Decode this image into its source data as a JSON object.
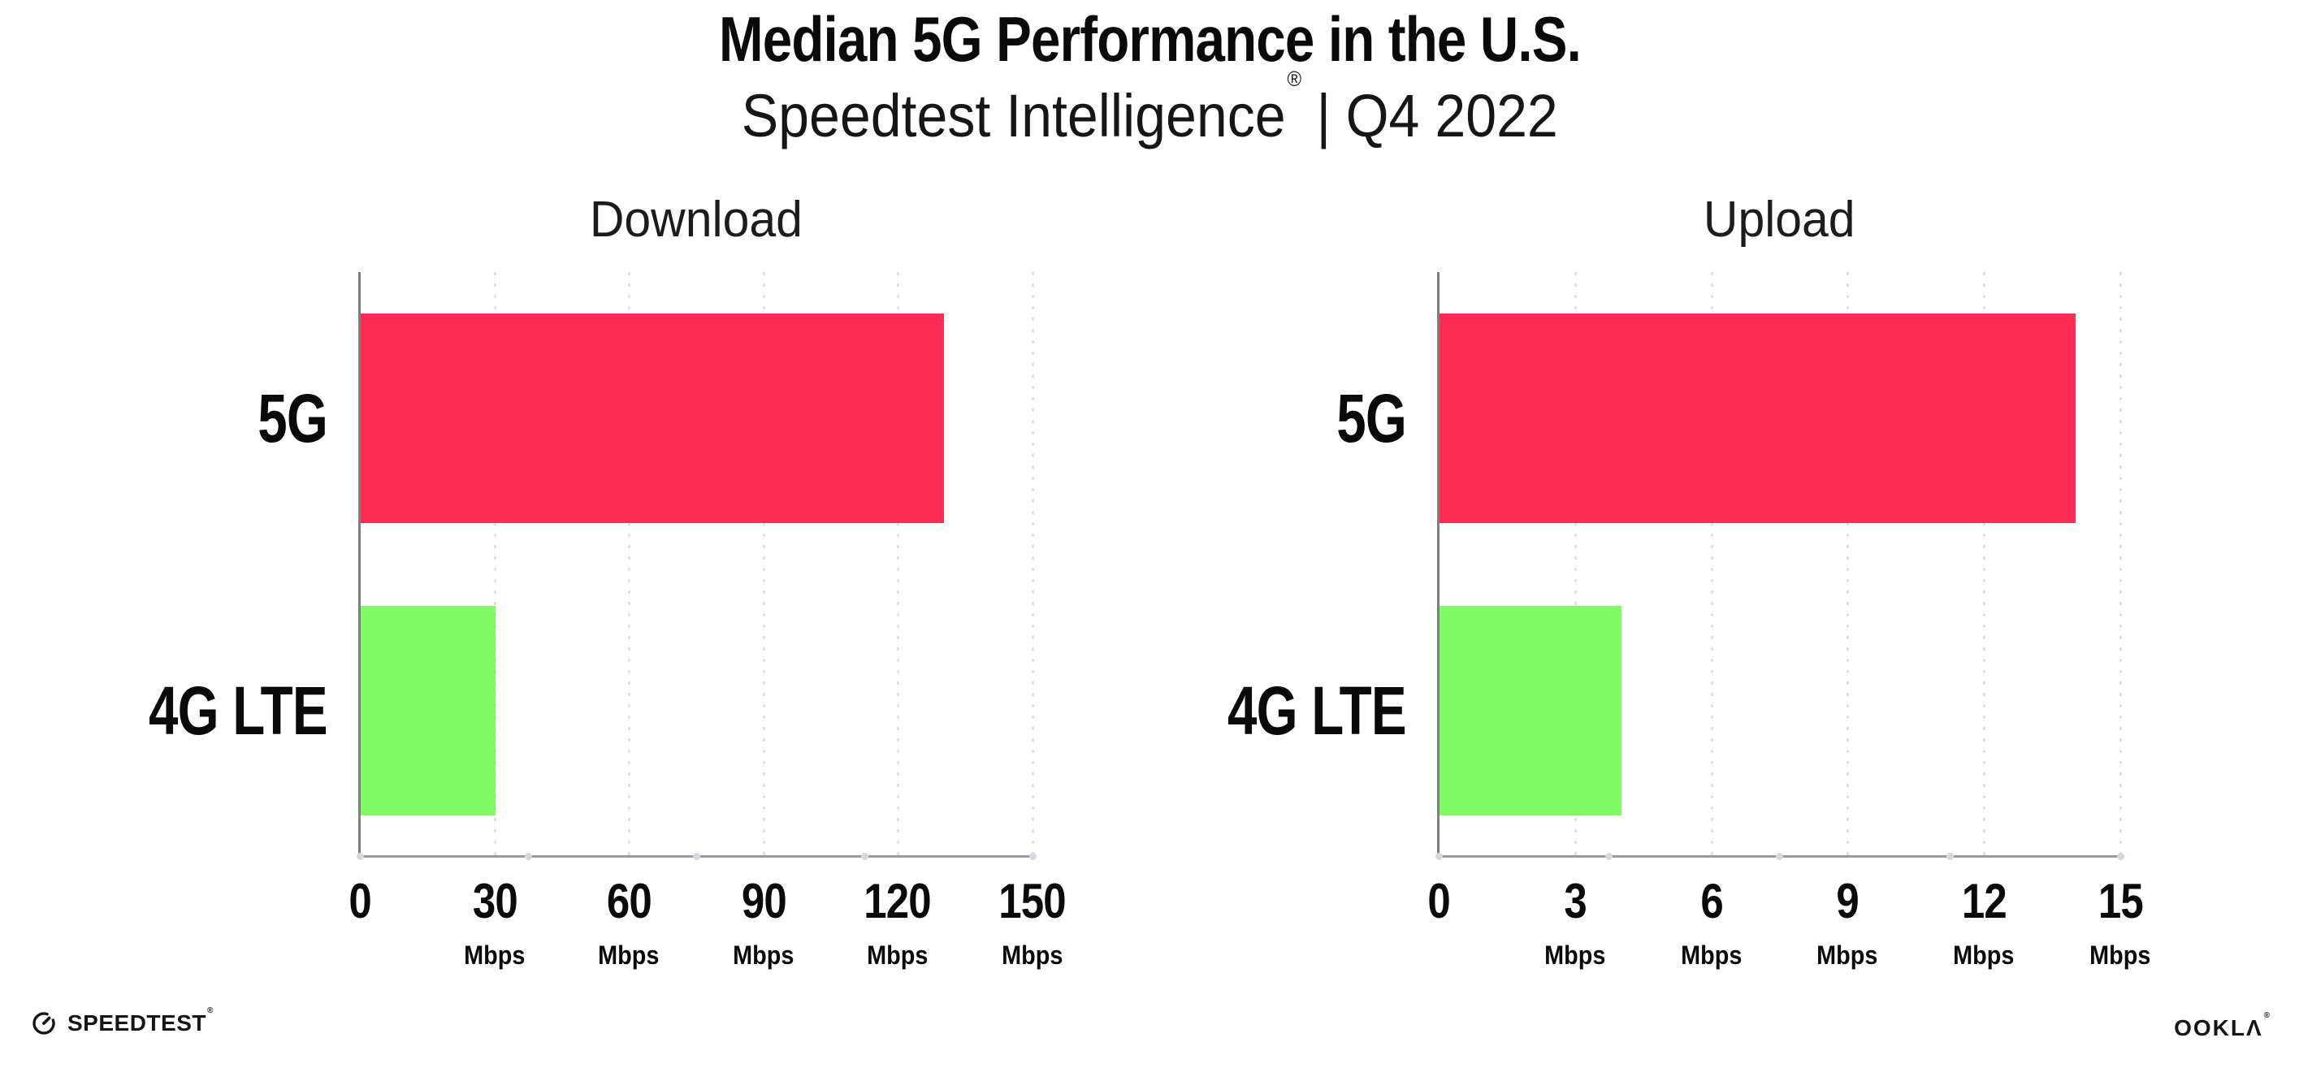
{
  "header": {
    "title": "Median 5G Performance in the U.S.",
    "subtitle_brand": "Speedtest Intelligence",
    "subtitle_reg": "®",
    "subtitle_separator": "|",
    "subtitle_period": "Q4 2022"
  },
  "footer": {
    "speedtest_label": "SPEEDTEST",
    "speedtest_reg": "®",
    "ookla_label": "OOKLΛ",
    "ookla_reg": "®"
  },
  "colors": {
    "bar_5g": "#FF2D55",
    "bar_4g_lte": "#80FB64",
    "x_axis_line": "#9b9b9b",
    "y_axis_line": "#7e7e7e",
    "gridline_dots": "#dfe2ec",
    "axis_marker_dots": "#d4d8e4",
    "text": "#0a0a0a",
    "background": "#ffffff"
  },
  "chart_data": [
    {
      "type": "bar",
      "orientation": "horizontal",
      "title": "Download",
      "categories": [
        "5G",
        "4G LTE"
      ],
      "values": [
        130,
        30
      ],
      "unit": "Mbps",
      "xlim": [
        0,
        150
      ],
      "xticks": [
        0,
        30,
        60,
        90,
        120,
        150
      ],
      "grid": "vertical-dotted",
      "legend": "none",
      "bar_colors": [
        "#FF2D55",
        "#80FB64"
      ]
    },
    {
      "type": "bar",
      "orientation": "horizontal",
      "title": "Upload",
      "categories": [
        "5G",
        "4G LTE"
      ],
      "values": [
        14,
        4
      ],
      "unit": "Mbps",
      "xlim": [
        0,
        15
      ],
      "xticks": [
        0,
        3,
        6,
        9,
        12,
        15
      ],
      "grid": "vertical-dotted",
      "legend": "none",
      "bar_colors": [
        "#FF2D55",
        "#80FB64"
      ]
    }
  ]
}
